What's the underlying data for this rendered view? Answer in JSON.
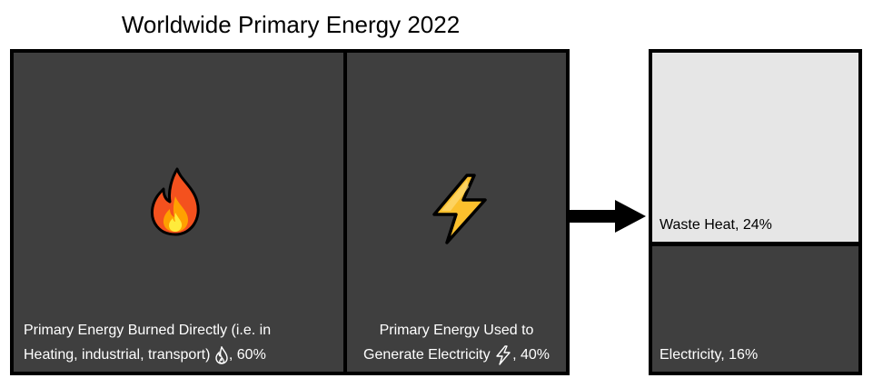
{
  "title": "Worldwide Primary Energy 2022",
  "boxes": {
    "burned": {
      "label_line1": "Primary Energy Burned Directly (i.e. in",
      "label_line2": "Heating, industrial, transport)",
      "label_suffix": ", 60%",
      "icon": "fire-icon",
      "percent": 60
    },
    "electric_generation": {
      "label_line1": "Primary Energy Used to",
      "label_line2": "Generate Electricity",
      "label_suffix": ", 40%",
      "icon": "lightning-bolt-icon",
      "percent": 40
    },
    "waste_heat": {
      "label": "Waste Heat, 24%",
      "percent": 24
    },
    "electricity": {
      "label": "Electricity, 16%",
      "percent": 16
    }
  },
  "colors": {
    "dark_box": "#3f3f3f",
    "light_box": "#e6e6e6",
    "border": "#000000"
  }
}
